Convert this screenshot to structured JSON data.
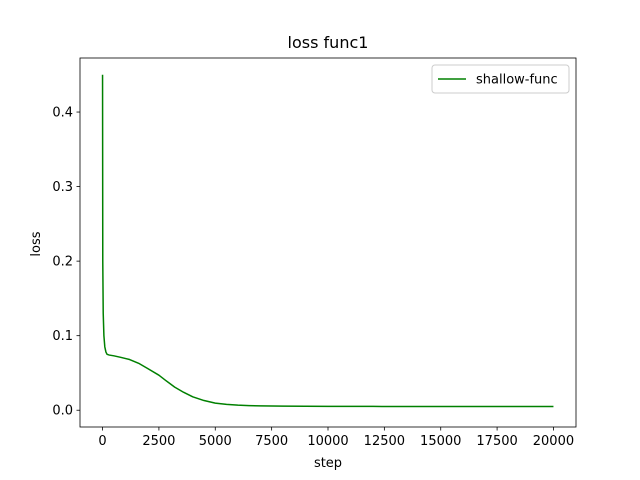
{
  "chart_data": {
    "type": "line",
    "title": "loss func1",
    "xlabel": "step",
    "ylabel": "loss",
    "xlim": [
      -1000,
      21000
    ],
    "ylim": [
      -0.0225,
      0.4725
    ],
    "xticks": [
      0,
      2500,
      5000,
      7500,
      10000,
      12500,
      15000,
      17500,
      20000
    ],
    "xtick_labels": [
      "0",
      "2500",
      "5000",
      "7500",
      "10000",
      "12500",
      "15000",
      "17500",
      "20000"
    ],
    "yticks": [
      0.0,
      0.1,
      0.2,
      0.3,
      0.4
    ],
    "ytick_labels": [
      "0.0",
      "0.1",
      "0.2",
      "0.3",
      "0.4"
    ],
    "legend_position": "top-right",
    "grid": false,
    "series": [
      {
        "name": "shallow-func",
        "color": "#008000",
        "x": [
          0,
          10,
          30,
          60,
          100,
          150,
          200,
          300,
          500,
          800,
          1200,
          1600,
          2000,
          2500,
          2800,
          3200,
          3600,
          4000,
          4500,
          5000,
          5500,
          6000,
          6500,
          7000,
          8000,
          9000,
          10000,
          12000,
          15000,
          17500,
          20000
        ],
        "y": [
          0.45,
          0.2,
          0.13,
          0.1,
          0.085,
          0.078,
          0.075,
          0.074,
          0.073,
          0.071,
          0.068,
          0.063,
          0.056,
          0.047,
          0.04,
          0.031,
          0.024,
          0.018,
          0.013,
          0.0095,
          0.0078,
          0.0068,
          0.0062,
          0.0058,
          0.0055,
          0.0053,
          0.0052,
          0.0051,
          0.005,
          0.005,
          0.005
        ]
      }
    ]
  }
}
